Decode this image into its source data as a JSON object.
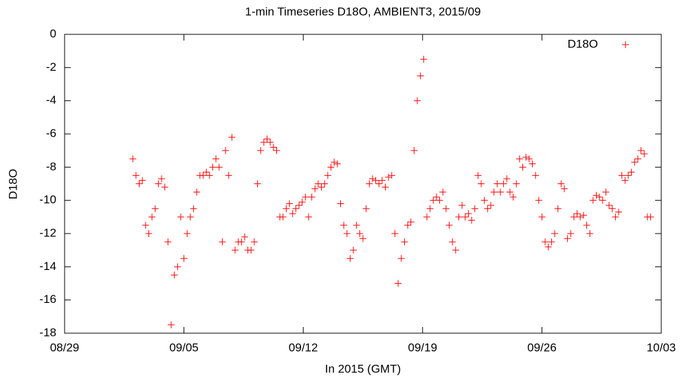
{
  "chart_data": {
    "type": "scatter",
    "title": "1-min Timeseries D18O, AMBIENT3, 2015/09",
    "xlabel": "In 2015 (GMT)",
    "ylabel": "D18O",
    "xlim": [
      "2015-08-29T00:00Z",
      "2015-10-03T00:00Z"
    ],
    "xticks": [
      {
        "value": "2015-08-29T00:00Z",
        "label": "08/29"
      },
      {
        "value": "2015-09-05T00:00Z",
        "label": "09/05"
      },
      {
        "value": "2015-09-12T00:00Z",
        "label": "09/12"
      },
      {
        "value": "2015-09-19T00:00Z",
        "label": "09/19"
      },
      {
        "value": "2015-09-26T00:00Z",
        "label": "09/26"
      },
      {
        "value": "2015-10-03T00:00Z",
        "label": "10/03"
      }
    ],
    "ylim": [
      -18,
      0
    ],
    "yticks": [
      -18,
      -16,
      -14,
      -12,
      -10,
      -8,
      -6,
      -4,
      -2,
      0
    ],
    "legend": "top-right",
    "x": [
      "2015-09-02T00:00Z",
      "2015-09-02T04:30Z",
      "2015-09-02T09:00Z",
      "2015-09-02T13:30Z",
      "2015-09-02T18:00Z",
      "2015-09-02T22:30Z",
      "2015-09-03T03:00Z",
      "2015-09-03T07:30Z",
      "2015-09-03T12:00Z",
      "2015-09-03T16:30Z",
      "2015-09-03T21:00Z",
      "2015-09-04T01:30Z",
      "2015-09-04T06:00Z",
      "2015-09-04T10:30Z",
      "2015-09-04T15:00Z",
      "2015-09-04T19:30Z",
      "2015-09-05T00:00Z",
      "2015-09-05T04:30Z",
      "2015-09-05T09:00Z",
      "2015-09-05T13:30Z",
      "2015-09-05T18:00Z",
      "2015-09-05T22:30Z",
      "2015-09-06T03:00Z",
      "2015-09-06T07:30Z",
      "2015-09-06T12:00Z",
      "2015-09-06T16:30Z",
      "2015-09-06T21:00Z",
      "2015-09-07T01:30Z",
      "2015-09-07T06:00Z",
      "2015-09-07T10:30Z",
      "2015-09-07T15:00Z",
      "2015-09-07T19:30Z",
      "2015-09-08T00:00Z",
      "2015-09-08T04:30Z",
      "2015-09-08T09:00Z",
      "2015-09-08T13:30Z",
      "2015-09-08T18:00Z",
      "2015-09-08T22:30Z",
      "2015-09-09T03:00Z",
      "2015-09-09T07:30Z",
      "2015-09-09T12:00Z",
      "2015-09-09T16:30Z",
      "2015-09-09T21:00Z",
      "2015-09-10T01:30Z",
      "2015-09-10T06:00Z",
      "2015-09-10T10:30Z",
      "2015-09-10T15:00Z",
      "2015-09-10T19:30Z",
      "2015-09-11T00:00Z",
      "2015-09-11T04:30Z",
      "2015-09-11T09:00Z",
      "2015-09-11T13:30Z",
      "2015-09-11T18:00Z",
      "2015-09-11T22:30Z",
      "2015-09-12T03:00Z",
      "2015-09-12T07:30Z",
      "2015-09-12T12:00Z",
      "2015-09-12T16:30Z",
      "2015-09-12T21:00Z",
      "2015-09-13T01:30Z",
      "2015-09-13T06:00Z",
      "2015-09-13T10:30Z",
      "2015-09-13T15:00Z",
      "2015-09-13T19:30Z",
      "2015-09-14T00:00Z",
      "2015-09-14T04:30Z",
      "2015-09-14T09:00Z",
      "2015-09-14T13:30Z",
      "2015-09-14T18:00Z",
      "2015-09-14T22:30Z",
      "2015-09-15T03:00Z",
      "2015-09-15T07:30Z",
      "2015-09-15T12:00Z",
      "2015-09-15T16:30Z",
      "2015-09-15T21:00Z",
      "2015-09-16T01:30Z",
      "2015-09-16T06:00Z",
      "2015-09-16T10:30Z",
      "2015-09-16T15:00Z",
      "2015-09-16T19:30Z",
      "2015-09-17T00:00Z",
      "2015-09-17T04:30Z",
      "2015-09-17T09:00Z",
      "2015-09-17T13:30Z",
      "2015-09-17T18:00Z",
      "2015-09-17T22:30Z",
      "2015-09-18T03:00Z",
      "2015-09-18T07:30Z",
      "2015-09-18T12:00Z",
      "2015-09-18T16:30Z",
      "2015-09-18T21:00Z",
      "2015-09-19T01:30Z",
      "2015-09-19T06:00Z",
      "2015-09-19T10:30Z",
      "2015-09-19T15:00Z",
      "2015-09-19T19:30Z",
      "2015-09-20T00:00Z",
      "2015-09-20T04:30Z",
      "2015-09-20T09:00Z",
      "2015-09-20T13:30Z",
      "2015-09-20T18:00Z",
      "2015-09-20T22:30Z",
      "2015-09-21T03:00Z",
      "2015-09-21T07:30Z",
      "2015-09-21T12:00Z",
      "2015-09-21T16:30Z",
      "2015-09-21T21:00Z",
      "2015-09-22T01:30Z",
      "2015-09-22T06:00Z",
      "2015-09-22T10:30Z",
      "2015-09-22T15:00Z",
      "2015-09-22T19:30Z",
      "2015-09-23T00:00Z",
      "2015-09-23T04:30Z",
      "2015-09-23T09:00Z",
      "2015-09-23T13:30Z",
      "2015-09-23T18:00Z",
      "2015-09-23T22:30Z",
      "2015-09-24T03:00Z",
      "2015-09-24T07:30Z",
      "2015-09-24T12:00Z",
      "2015-09-24T16:30Z",
      "2015-09-24T21:00Z",
      "2015-09-25T01:30Z",
      "2015-09-25T06:00Z",
      "2015-09-25T10:30Z",
      "2015-09-25T15:00Z",
      "2015-09-25T19:30Z",
      "2015-09-26T00:00Z",
      "2015-09-26T04:30Z",
      "2015-09-26T09:00Z",
      "2015-09-26T13:30Z",
      "2015-09-26T18:00Z",
      "2015-09-26T22:30Z",
      "2015-09-27T03:00Z",
      "2015-09-27T07:30Z",
      "2015-09-27T12:00Z",
      "2015-09-27T16:30Z",
      "2015-09-27T21:00Z",
      "2015-09-28T01:30Z",
      "2015-09-28T06:00Z",
      "2015-09-28T10:30Z",
      "2015-09-28T15:00Z",
      "2015-09-28T19:30Z",
      "2015-09-29T00:00Z",
      "2015-09-29T04:30Z",
      "2015-09-29T09:00Z",
      "2015-09-29T13:30Z",
      "2015-09-29T18:00Z",
      "2015-09-29T22:30Z",
      "2015-09-30T03:00Z",
      "2015-09-30T07:30Z",
      "2015-09-30T12:00Z",
      "2015-09-30T16:30Z",
      "2015-09-30T21:00Z",
      "2015-10-01T01:30Z",
      "2015-10-01T06:00Z",
      "2015-10-01T10:30Z",
      "2015-10-01T15:00Z",
      "2015-10-01T19:30Z",
      "2015-10-02T00:00Z",
      "2015-10-02T04:30Z",
      "2015-10-02T09:00Z"
    ],
    "series": [
      {
        "name": "D18O",
        "color": "#ff0000",
        "values": [
          -7.5,
          -8.5,
          -9,
          -8.8,
          -11.5,
          -12,
          -11,
          -10.5,
          -9,
          -8.7,
          -9.2,
          -12.5,
          -17.5,
          -14.5,
          -14,
          -11,
          -13.5,
          -12,
          -11,
          -10.5,
          -9.5,
          -8.5,
          -8.5,
          -8.3,
          -8.5,
          -8,
          -7.5,
          -8,
          -12.5,
          -7,
          -8.5,
          -6.2,
          -13,
          -12.5,
          -12.5,
          -12.2,
          -13,
          -13,
          -12.5,
          -9,
          -7,
          -6.5,
          -6.3,
          -6.5,
          -6.8,
          -7,
          -11,
          -11,
          -10.5,
          -10.2,
          -10.8,
          -10.5,
          -10.3,
          -10.1,
          -9.8,
          -11,
          -9.8,
          -9.3,
          -9,
          -9.2,
          -9,
          -8.5,
          -8,
          -7.7,
          -7.8,
          -10.2,
          -11.5,
          -12,
          -13.5,
          -13,
          -11.5,
          -12,
          -12.3,
          -10.5,
          -9,
          -8.7,
          -8.8,
          -9,
          -8.8,
          -9.2,
          -8.6,
          -8.5,
          -12,
          -15,
          -13.5,
          -12.5,
          -11.5,
          -11.3,
          -7,
          -4,
          -2.5,
          -1.5,
          -11,
          -10.5,
          -10,
          -9.8,
          -10,
          -9.5,
          -10.5,
          -11.5,
          -12.5,
          -13,
          -11,
          -10.3,
          -11,
          -10.8,
          -11.2,
          -10.5,
          -8.5,
          -9,
          -10,
          -10.5,
          -10.3,
          -9.5,
          -9,
          -9.5,
          -9,
          -8.7,
          -9.5,
          -9.8,
          -9,
          -7.5,
          -8,
          -7.4,
          -7.5,
          -7.8,
          -8.5,
          -10,
          -11,
          -12.5,
          -12.8,
          -12.5,
          -12,
          -10.5,
          -9,
          -9.3,
          -12.3,
          -12,
          -11,
          -10.8,
          -11,
          -10.9,
          -11.5,
          -12,
          -10,
          -9.7,
          -9.8,
          -10,
          -9.5,
          -10.3,
          -10.5,
          -11,
          -10.7,
          -8.5,
          -8.8,
          -8.5,
          -8.3,
          -7.7,
          -7.5,
          -7,
          -7.2,
          -11,
          -11
        ]
      }
    ]
  }
}
